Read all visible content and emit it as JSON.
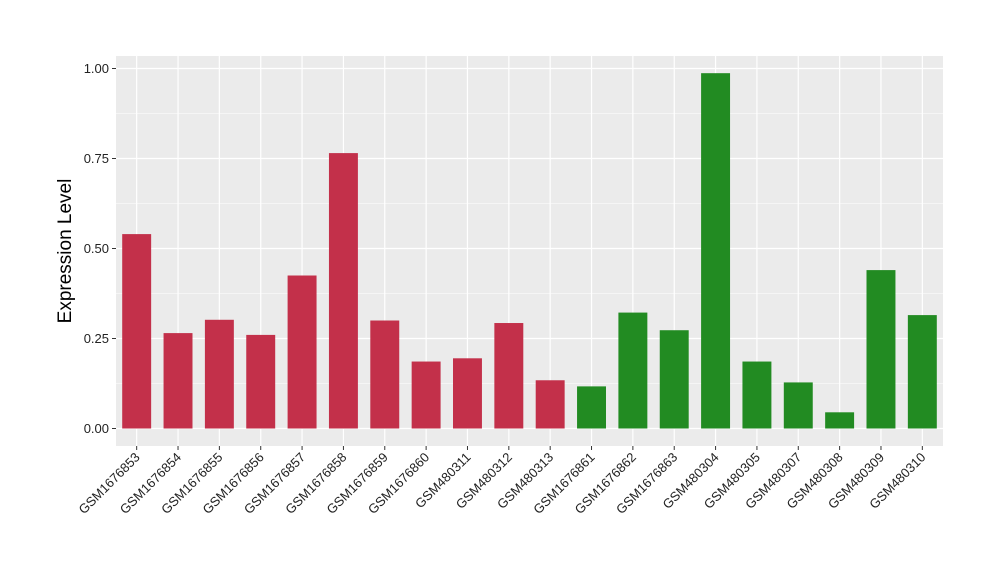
{
  "chart_data": {
    "type": "bar",
    "title": "",
    "xlabel": "",
    "ylabel": "Expression Level",
    "ylim": [
      0,
      1.0
    ],
    "yticks": [
      "0.00",
      "0.25",
      "0.50",
      "0.75",
      "1.00"
    ],
    "grid": true,
    "legend": "none",
    "categories": [
      "GSM1676853",
      "GSM1676854",
      "GSM1676855",
      "GSM1676856",
      "GSM1676857",
      "GSM1676858",
      "GSM1676859",
      "GSM1676860",
      "GSM480311",
      "GSM480312",
      "GSM480313",
      "GSM1676861",
      "GSM1676862",
      "GSM1676863",
      "GSM480304",
      "GSM480305",
      "GSM480307",
      "GSM480308",
      "GSM480309",
      "GSM480310"
    ],
    "values": [
      0.54,
      0.265,
      0.302,
      0.26,
      0.425,
      0.765,
      0.3,
      0.186,
      0.195,
      0.293,
      0.134,
      0.117,
      0.322,
      0.273,
      0.987,
      0.186,
      0.128,
      0.045,
      0.44,
      0.315
    ],
    "bar_colors": [
      "#c3304a",
      "#c3304a",
      "#c3304a",
      "#c3304a",
      "#c3304a",
      "#c3304a",
      "#c3304a",
      "#c3304a",
      "#c3304a",
      "#c3304a",
      "#c3304a",
      "#228b22",
      "#228b22",
      "#228b22",
      "#228b22",
      "#228b22",
      "#228b22",
      "#228b22",
      "#228b22",
      "#228b22"
    ],
    "panel_background": "#ebebeb",
    "gridline_color": "#ffffff"
  }
}
